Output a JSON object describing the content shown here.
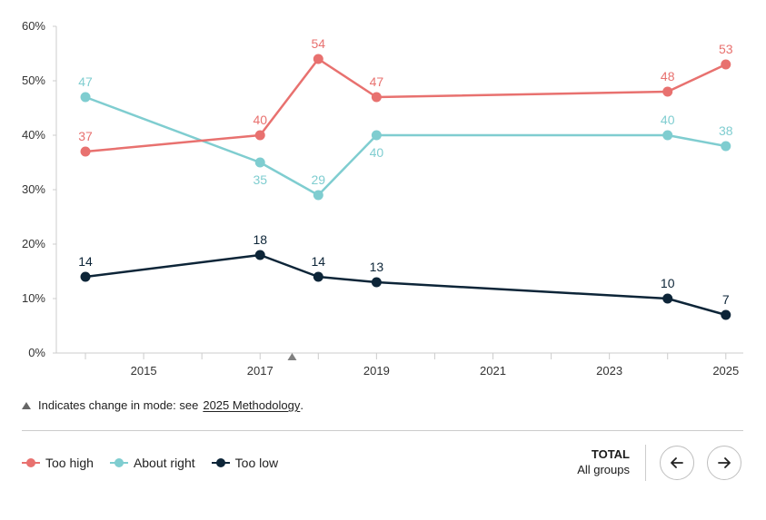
{
  "chart_data": {
    "type": "line",
    "title": "",
    "xlabel": "",
    "ylabel": "",
    "xlim": [
      2013.5,
      2025.3
    ],
    "ylim": [
      0,
      60
    ],
    "x_ticks": [
      2015,
      2017,
      2019,
      2021,
      2023,
      2025
    ],
    "x_ticks_minor": [
      2014,
      2016,
      2018,
      2020,
      2022,
      2024
    ],
    "y_ticks": [
      0,
      10,
      20,
      30,
      40,
      50,
      60
    ],
    "y_tick_labels": [
      "0%",
      "10%",
      "20%",
      "30%",
      "40%",
      "50%",
      "60%"
    ],
    "grid": false,
    "mode_change_x": 2017.55,
    "series": [
      {
        "name": "Too high",
        "color": "#e8716f",
        "label_pos": [
          "above",
          "above",
          "above",
          "above",
          "above",
          "above"
        ],
        "points": [
          [
            2014,
            37
          ],
          [
            2017,
            40
          ],
          [
            2018,
            54
          ],
          [
            2019,
            47
          ],
          [
            2024,
            48
          ],
          [
            2025,
            53
          ]
        ]
      },
      {
        "name": "About right",
        "color": "#7fcdd0",
        "label_pos": [
          "above",
          "below",
          "above",
          "below",
          "above",
          "above"
        ],
        "points": [
          [
            2014,
            47
          ],
          [
            2017,
            35
          ],
          [
            2018,
            29
          ],
          [
            2019,
            40
          ],
          [
            2024,
            40
          ],
          [
            2025,
            38
          ]
        ]
      },
      {
        "name": "Too low",
        "color": "#0d2538",
        "label_pos": [
          "above",
          "above",
          "above",
          "above",
          "above",
          "above"
        ],
        "points": [
          [
            2014,
            14
          ],
          [
            2017,
            18
          ],
          [
            2018,
            14
          ],
          [
            2019,
            13
          ],
          [
            2024,
            10
          ],
          [
            2025,
            7
          ]
        ]
      }
    ]
  },
  "note": {
    "text": "Indicates change in mode: see",
    "link": "2025 Methodology",
    "end": "."
  },
  "legend": {
    "items": [
      {
        "label": "Too high",
        "color": "#e8716f"
      },
      {
        "label": "About right",
        "color": "#7fcdd0"
      },
      {
        "label": "Too low",
        "color": "#0d2538"
      }
    ]
  },
  "group": {
    "title": "TOTAL",
    "subtitle": "All groups"
  },
  "nav": {
    "prev_icon": "arrow-left-icon",
    "next_icon": "arrow-right-icon"
  }
}
